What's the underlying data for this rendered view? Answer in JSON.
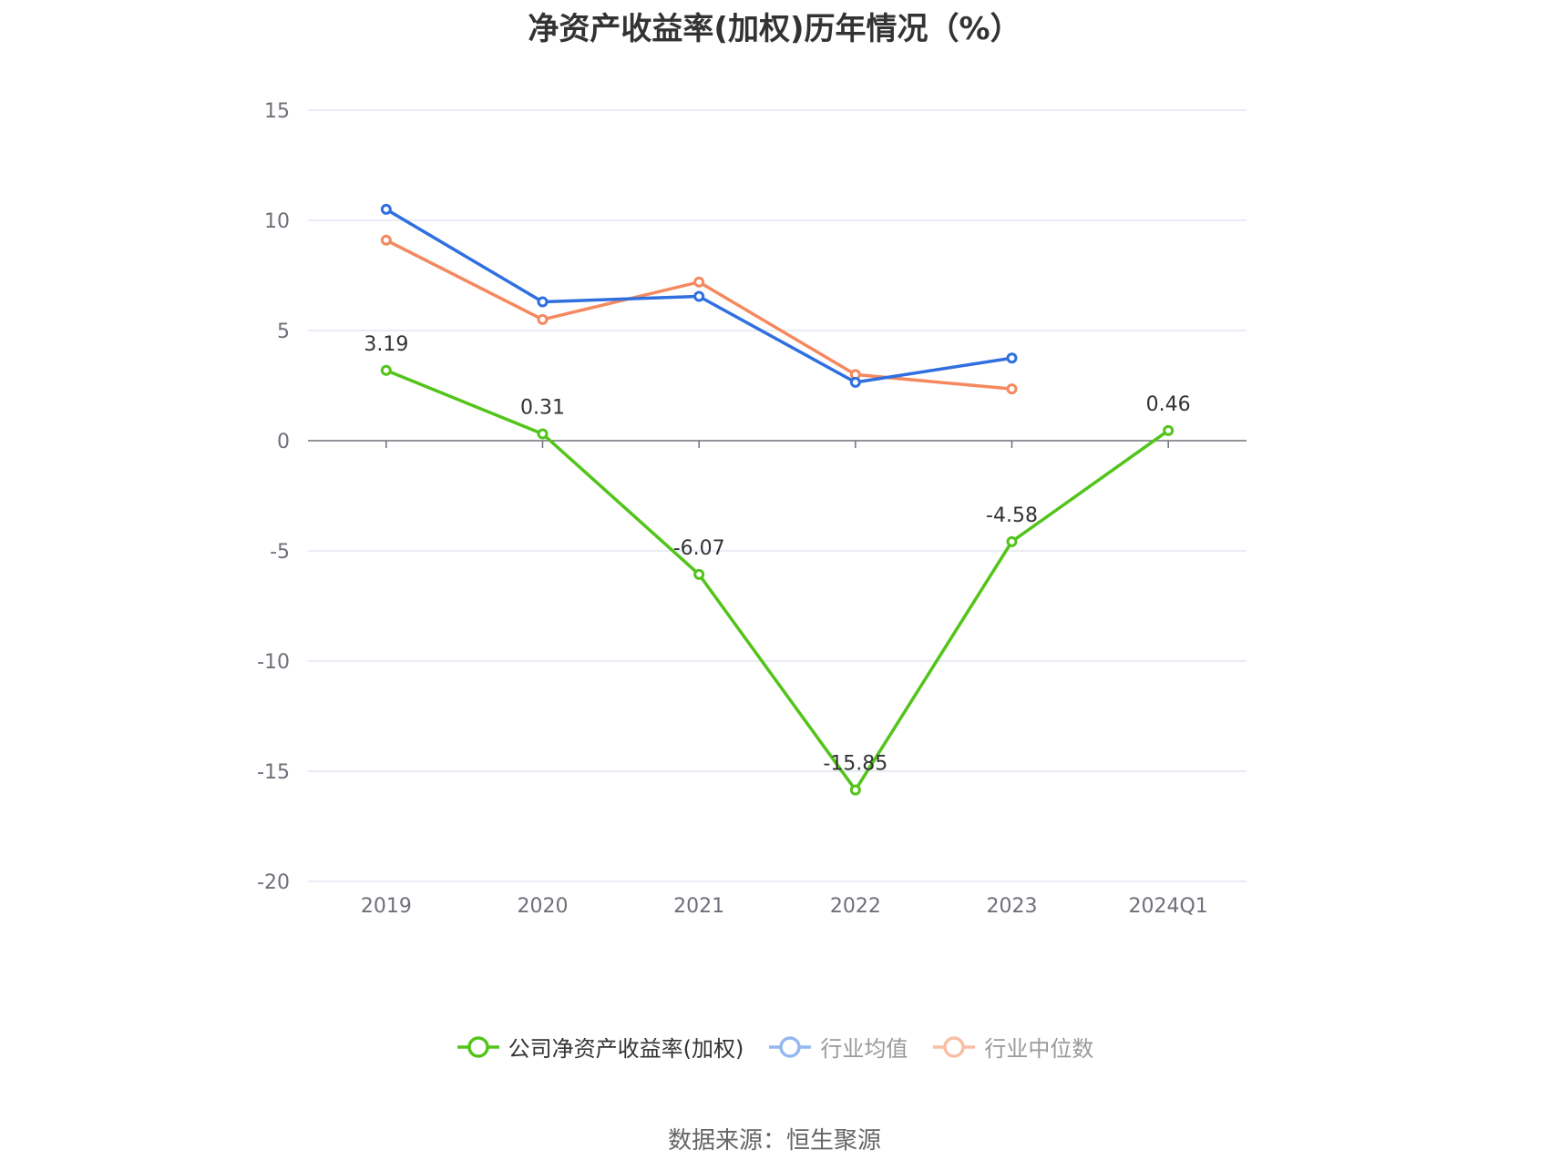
{
  "chart_data": {
    "type": "line",
    "title": "净资产收益率(加权)历年情况（%）",
    "categories": [
      "2019",
      "2020",
      "2021",
      "2022",
      "2023",
      "2024Q1"
    ],
    "ylim": [
      -20,
      15
    ],
    "yticks": [
      15,
      10,
      5,
      0,
      -5,
      -10,
      -15,
      -20
    ],
    "grid": true,
    "legend_position": "bottom",
    "series": [
      {
        "name": "公司净资产收益率(加权)",
        "color": "#52c41a",
        "values": [
          3.19,
          0.31,
          -6.07,
          -15.85,
          -4.58,
          0.46
        ],
        "labels": [
          "3.19",
          "0.31",
          "-6.07",
          "-15.85",
          "-4.58",
          "0.46"
        ],
        "show_labels": true
      },
      {
        "name": "行业均值",
        "color": "#2f6fe0",
        "legend_color": "#94b8f0",
        "values": [
          10.5,
          6.3,
          6.55,
          2.65,
          3.75,
          null
        ],
        "show_labels": false
      },
      {
        "name": "行业中位数",
        "color": "#f4895f",
        "legend_color": "#f8bfa5",
        "values": [
          9.1,
          5.5,
          7.2,
          3.0,
          2.35,
          null
        ],
        "show_labels": false
      }
    ]
  },
  "source": "数据来源：恒生聚源"
}
